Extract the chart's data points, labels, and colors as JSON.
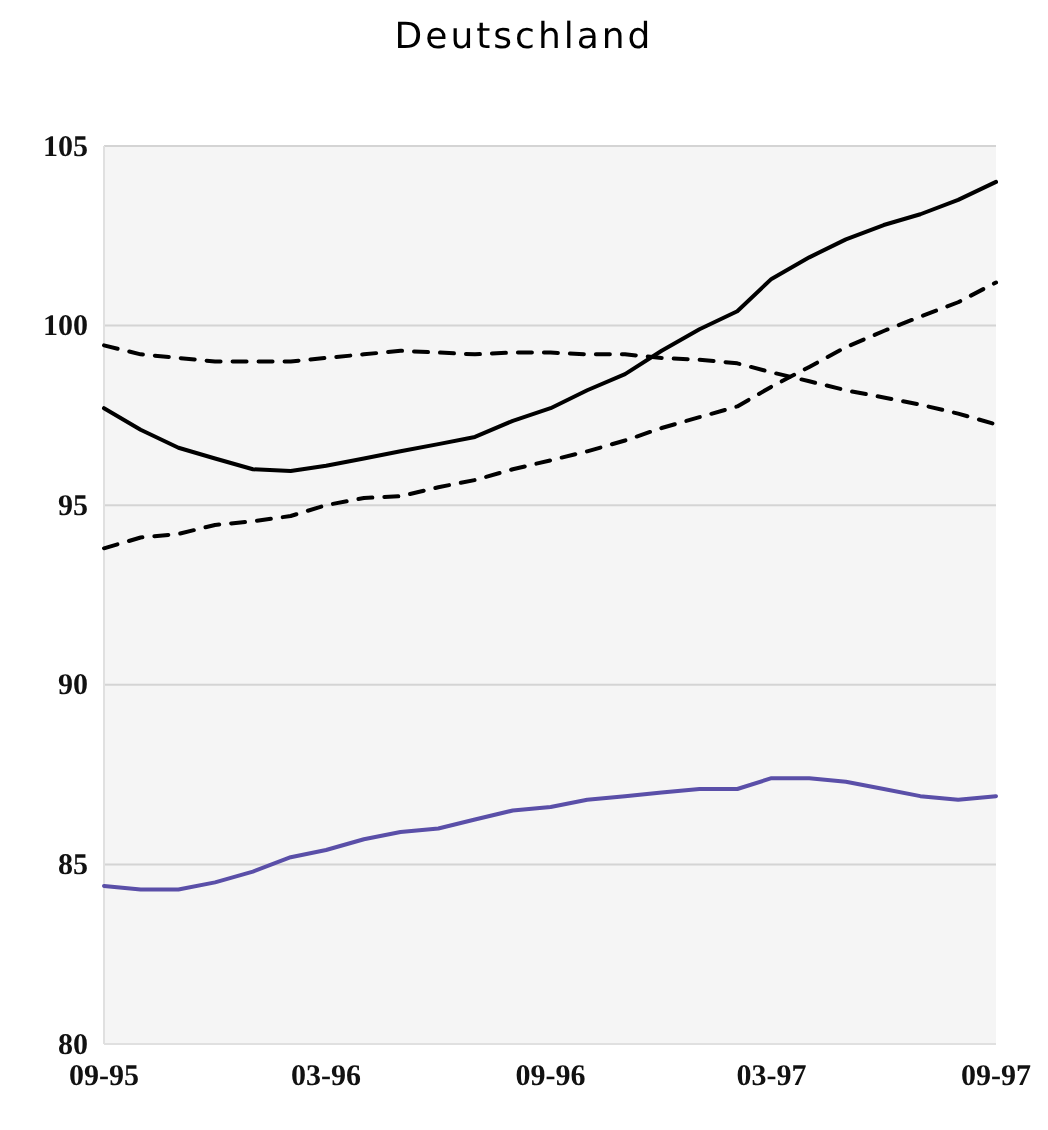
{
  "chart_data": {
    "type": "line",
    "title": "Deutschland",
    "x": [
      "1995-09",
      "1995-10",
      "1995-11",
      "1995-12",
      "1996-01",
      "1996-02",
      "1996-03",
      "1996-04",
      "1996-05",
      "1996-06",
      "1996-07",
      "1996-08",
      "1996-09",
      "1996-10",
      "1996-11",
      "1996-12",
      "1997-01",
      "1997-02",
      "1997-03",
      "1997-04",
      "1997-05",
      "1997-06",
      "1997-07",
      "1997-08",
      "1997-09"
    ],
    "xlim": [
      "1995-09",
      "1997-09"
    ],
    "xticks": [
      {
        "value": "1995-09",
        "label": "09-95"
      },
      {
        "value": "1996-03",
        "label": "03-96"
      },
      {
        "value": "1996-09",
        "label": "09-96"
      },
      {
        "value": "1997-03",
        "label": "03-97"
      },
      {
        "value": "1997-09",
        "label": "09-97"
      }
    ],
    "ylim": [
      80,
      105
    ],
    "yticks": [
      80,
      85,
      90,
      95,
      100,
      105
    ],
    "grid": "y",
    "marker": "none",
    "series": [
      {
        "color": "#000000",
        "line_style": "solid",
        "values": [
          97.7,
          97.1,
          96.6,
          96.3,
          96.0,
          95.95,
          96.1,
          96.3,
          96.5,
          96.7,
          96.9,
          97.35,
          97.7,
          98.2,
          98.65,
          99.3,
          99.9,
          100.4,
          101.3,
          101.9,
          102.4,
          102.8,
          103.1,
          103.5,
          104.0
        ]
      },
      {
        "color": "#000000",
        "line_style": "dashed",
        "values": [
          99.45,
          99.2,
          99.1,
          99.0,
          99.0,
          99.0,
          99.1,
          99.2,
          99.3,
          99.25,
          99.2,
          99.25,
          99.25,
          99.2,
          99.2,
          99.1,
          99.05,
          98.95,
          98.7,
          98.45,
          98.2,
          98.0,
          97.8,
          97.55,
          97.25
        ]
      },
      {
        "color": "#000000",
        "line_style": "dashed",
        "values": [
          93.8,
          94.1,
          94.2,
          94.45,
          94.55,
          94.7,
          95.0,
          95.2,
          95.25,
          95.5,
          95.7,
          96.0,
          96.25,
          96.5,
          96.8,
          97.15,
          97.45,
          97.75,
          98.3,
          98.85,
          99.4,
          99.85,
          100.25,
          100.65,
          101.2
        ]
      },
      {
        "color": "#5a4fa8",
        "line_style": "solid",
        "values": [
          84.4,
          84.3,
          84.3,
          84.5,
          84.8,
          85.2,
          85.4,
          85.7,
          85.9,
          86.0,
          86.25,
          86.5,
          86.6,
          86.8,
          86.9,
          87.0,
          87.1,
          87.1,
          87.4,
          87.4,
          87.3,
          87.1,
          86.9,
          86.8,
          86.9
        ]
      }
    ]
  }
}
